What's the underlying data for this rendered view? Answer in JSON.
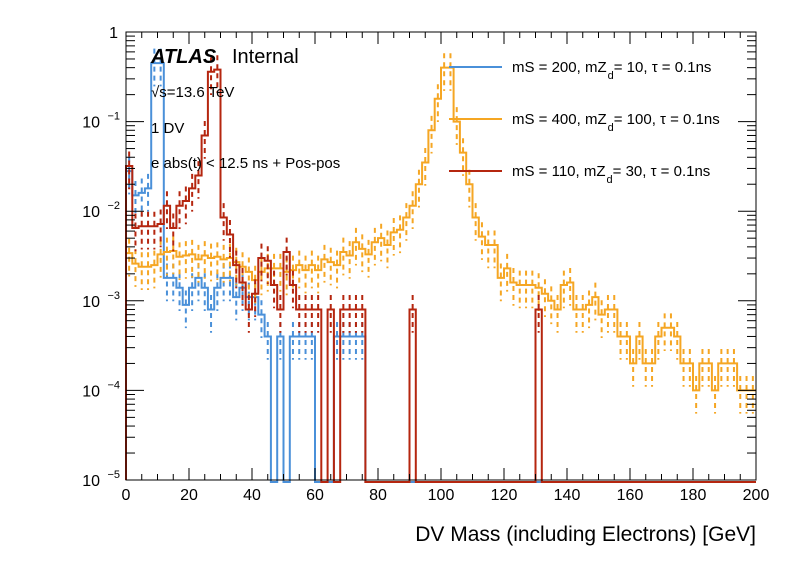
{
  "chart_data": {
    "type": "histogram-step",
    "xlabel": "DV Mass (including Electrons) [GeV]",
    "ylabel": "",
    "xlim": [
      0,
      200
    ],
    "ylim": [
      1e-05,
      1
    ],
    "yscale": "log",
    "bin_width": 2,
    "x_ticks": [
      "0",
      "20",
      "40",
      "60",
      "80",
      "100",
      "120",
      "140",
      "160",
      "180",
      "200"
    ],
    "x_tick_values": [
      0,
      20,
      40,
      60,
      80,
      100,
      120,
      140,
      160,
      180,
      200
    ],
    "y_ticks": [
      {
        "value": 1,
        "base": "1",
        "exp": ""
      },
      {
        "value": 0.1,
        "base": "10",
        "exp": "−1"
      },
      {
        "value": 0.01,
        "base": "10",
        "exp": "−2"
      },
      {
        "value": 0.001,
        "base": "10",
        "exp": "−3"
      },
      {
        "value": 0.0001,
        "base": "10",
        "exp": "−4"
      },
      {
        "value": 1e-05,
        "base": "10",
        "exp": "−5"
      }
    ],
    "annotations": {
      "atlas": "ATLAS",
      "internal": "Internal",
      "energy": "√s=13.6 TeV",
      "selection1": "1 DV",
      "selection2": "e abs(t) < 12.5 ns + Pos-pos"
    },
    "legend_position": "top-right",
    "series": [
      {
        "name": "mS = 200, mZ_d = 10, τ = 0.1ns",
        "label_main": "mS = 200, mZ",
        "label_sub": "d",
        "label_tail": " = 10, τ = 0.1ns",
        "color": "#4a90d9",
        "values": [
          0.028,
          0.015,
          0.016,
          0.018,
          0.45,
          0.45,
          0.0018,
          0.0018,
          0.0014,
          0.0009,
          0.0014,
          0.0018,
          0.0014,
          0.0008,
          0.0014,
          0.0018,
          0.0018,
          0.0011,
          0.0014,
          0.0011,
          0.0011,
          0.0007,
          0.0004,
          0,
          0.0004,
          0,
          0.0004,
          0.0004,
          0.0004,
          0.0004,
          0,
          0,
          0,
          0.0004,
          0.0004,
          0.0004,
          0.0004,
          0.0004,
          0,
          0,
          0,
          0,
          0,
          0,
          0,
          0,
          0,
          0,
          0,
          0,
          0,
          0,
          0,
          0,
          0,
          0,
          0,
          0,
          0,
          0,
          0,
          0,
          0,
          0,
          0,
          0,
          0,
          0,
          0,
          0,
          0,
          0,
          0,
          0,
          0,
          0,
          0,
          0,
          0,
          0,
          0,
          0,
          0,
          0,
          0,
          0,
          0,
          0,
          0,
          0,
          0,
          0,
          0,
          0,
          0,
          0,
          0,
          0,
          0,
          0
        ]
      },
      {
        "name": "mS = 400, mZ_d = 100, τ = 0.1ns",
        "label_main": "mS = 400, mZ",
        "label_sub": "d",
        "label_tail": " = 100, τ = 0.1ns",
        "color": "#f5a623",
        "values": [
          0.0034,
          0.0026,
          0.0024,
          0.0024,
          0.0025,
          0.0033,
          0.0035,
          0.0036,
          0.0031,
          0.0032,
          0.0033,
          0.0029,
          0.0032,
          0.003,
          0.0031,
          0.0029,
          0.003,
          0.0027,
          0.0024,
          0.0021,
          0.0017,
          0.0021,
          0.0023,
          0.0023,
          0.0023,
          0.0021,
          0.0022,
          0.0025,
          0.0022,
          0.0025,
          0.0022,
          0.0029,
          0.0027,
          0.0025,
          0.0035,
          0.0032,
          0.0045,
          0.0038,
          0.0033,
          0.0045,
          0.005,
          0.0042,
          0.0058,
          0.0062,
          0.0085,
          0.0115,
          0.02,
          0.035,
          0.08,
          0.18,
          0.4,
          0.4,
          0.1,
          0.045,
          0.02,
          0.0085,
          0.0052,
          0.0042,
          0.0042,
          0.0018,
          0.0023,
          0.0016,
          0.0015,
          0.0015,
          0.0015,
          0.0014,
          0.0012,
          0.001,
          0.0008,
          0.0015,
          0.0016,
          0.0008,
          0.0008,
          0.0009,
          0.0011,
          0.0007,
          0.0008,
          0.0008,
          0.0004,
          0.0004,
          0.0002,
          0.0004,
          0.0002,
          0.0002,
          0.0004,
          0.0005,
          0.0005,
          0.0004,
          0.0002,
          0.0002,
          0.0001,
          0.0002,
          0.0002,
          0.0001,
          0.0002,
          0.0002,
          0.0002,
          0.0001,
          0.0001,
          0.0001
        ]
      },
      {
        "name": "mS = 110, mZ_d = 30, τ = 0.1ns",
        "label_main": "mS = 110, mZ",
        "label_sub": "d",
        "label_tail": " = 30, τ = 0.1ns",
        "color": "#b5260f",
        "values": [
          0.032,
          0.0065,
          0.0068,
          0.0068,
          0.0068,
          0.0072,
          0.0115,
          0.0065,
          0.0115,
          0.013,
          0.018,
          0.025,
          0.07,
          0.36,
          0.38,
          0.0085,
          0.0055,
          0.0025,
          0.0016,
          0.0008,
          0.0012,
          0.003,
          0.0028,
          0.0015,
          0.0008,
          0.0035,
          0.0015,
          0.0008,
          0.0008,
          0.0008,
          0.0008,
          0,
          0.0008,
          0,
          0.0008,
          0.0008,
          0.0008,
          0.0008,
          0,
          0,
          0,
          0,
          0,
          0,
          0,
          0.0008,
          0,
          0,
          0,
          0,
          0,
          0,
          0,
          0,
          0,
          0,
          0,
          0,
          0,
          0,
          0,
          0,
          0,
          0,
          0,
          0.0008,
          0,
          0,
          0,
          0,
          0,
          0,
          0,
          0,
          0,
          0,
          0,
          0,
          0,
          0,
          0,
          0,
          0,
          0,
          0,
          0,
          0,
          0,
          0,
          0,
          0,
          0,
          0,
          0,
          0,
          0,
          0,
          0,
          0,
          0
        ]
      }
    ]
  }
}
